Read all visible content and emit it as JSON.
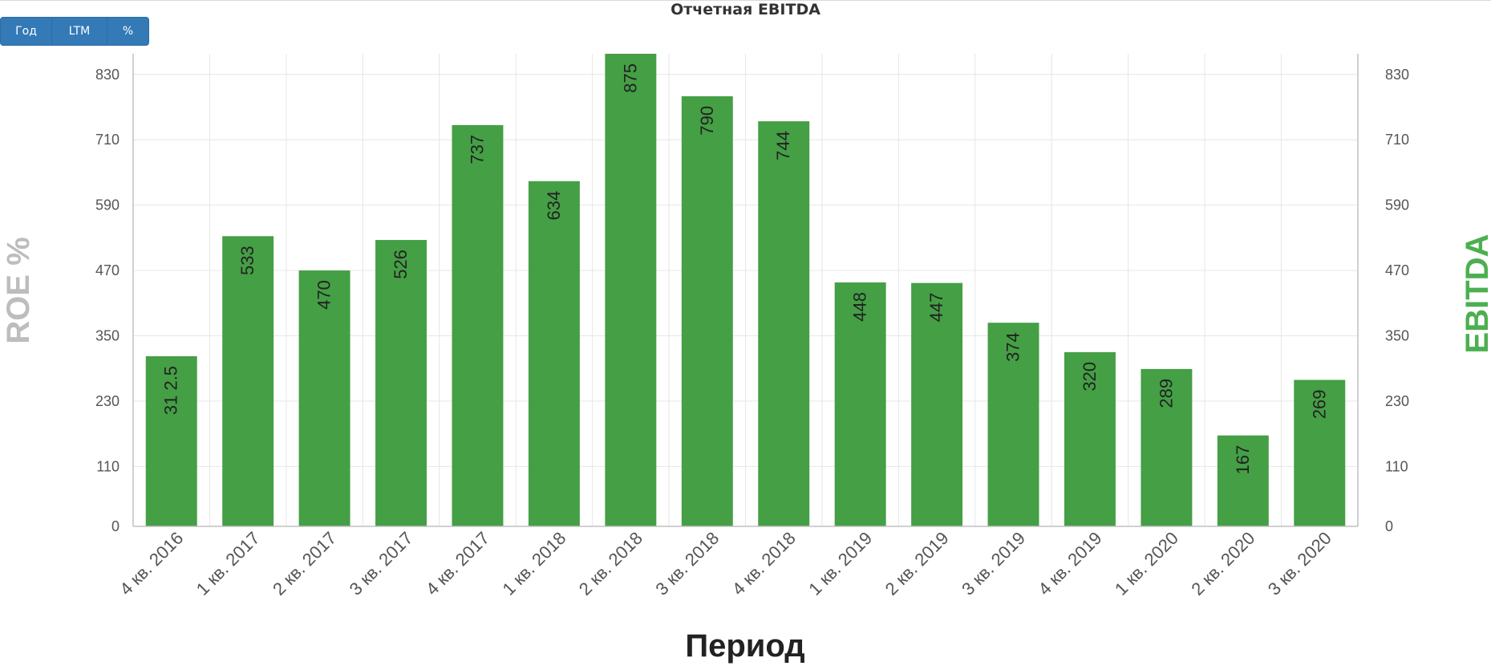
{
  "buttons": {
    "year_label": "Год",
    "ltm_label": "LTM",
    "percent_label": "%"
  },
  "chart_data": {
    "type": "bar",
    "title": "Отчетная EBITDA",
    "xlabel": "Период",
    "ylabel_left": "ROE %",
    "ylabel_right": "EBITDA",
    "categories": [
      "4 кв. 2016",
      "1 кв. 2017",
      "2 кв. 2017",
      "3 кв. 2017",
      "4 кв. 2017",
      "1 кв. 2018",
      "2 кв. 2018",
      "3 кв. 2018",
      "4 кв. 2018",
      "1 кв. 2019",
      "2 кв. 2019",
      "3 кв. 2019",
      "4 кв. 2019",
      "1 кв. 2020",
      "2 кв. 2020",
      "3 кв. 2020"
    ],
    "series": [
      {
        "values": [
          312.5,
          533,
          470,
          526,
          737,
          634,
          875,
          790,
          744,
          448,
          447,
          374,
          320,
          289,
          167,
          269
        ],
        "labels": [
          "31 2.5",
          "533",
          "470",
          "526",
          "737",
          "634",
          "875",
          "790",
          "744",
          "448",
          "447",
          "374",
          "320",
          "289",
          "167",
          "269"
        ],
        "color": "#449f45"
      }
    ],
    "yticks": [
      0,
      110,
      230,
      350,
      470,
      590,
      710,
      830
    ],
    "ylim": [
      0,
      868
    ],
    "grid": true,
    "colors": {
      "bar": "#449f45",
      "grid": "#e6e6e6",
      "axis": "#c0c0c0",
      "ylabel_right": "#4caf50",
      "ylabel_left": "#bdbdbd"
    }
  }
}
